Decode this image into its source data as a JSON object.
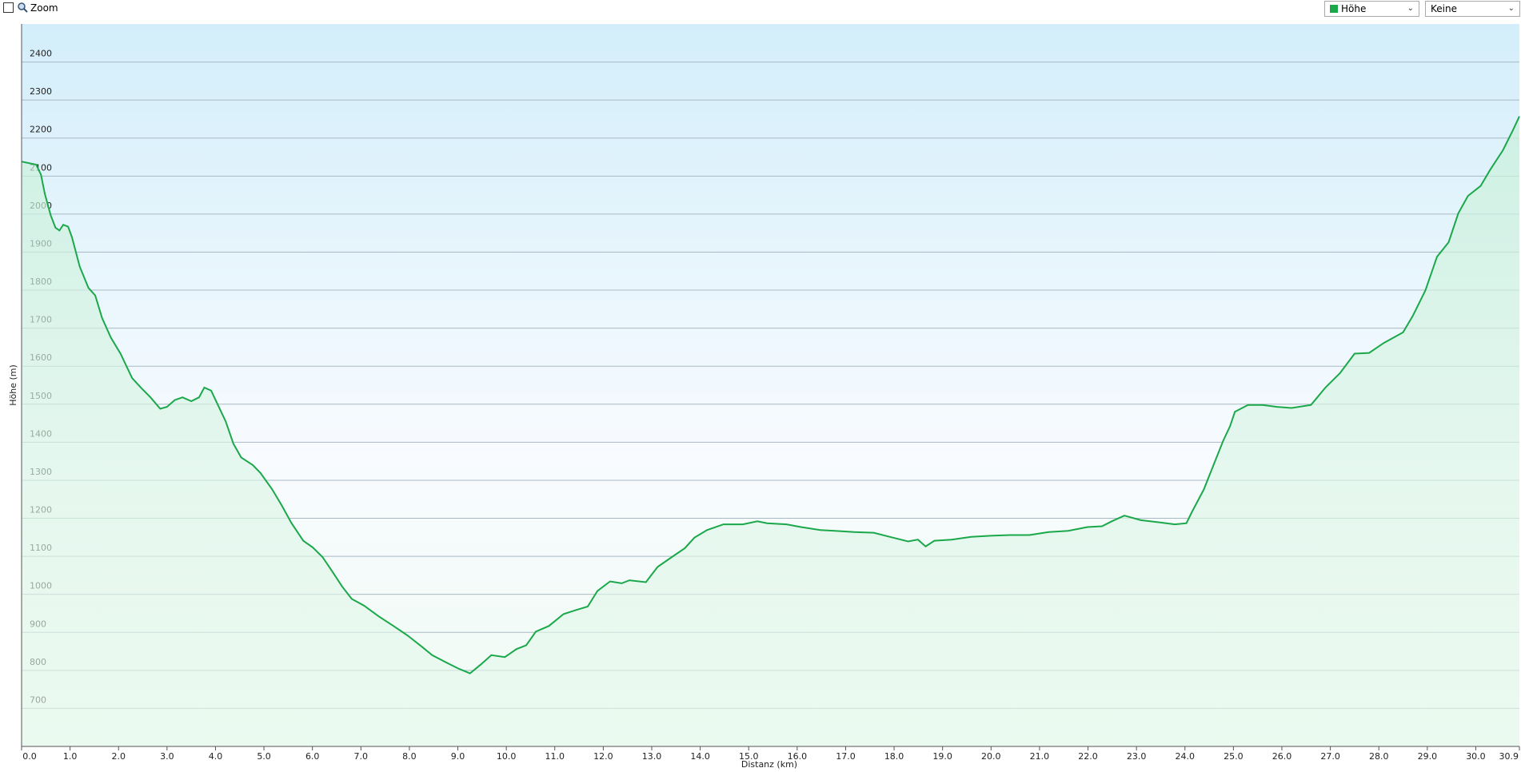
{
  "toolbar": {
    "zoom_label": "Zoom",
    "series_select": "Höhe",
    "second_select": "Keine"
  },
  "chart_data": {
    "type": "area",
    "ylabel": "Höhe (m)",
    "xlabel": "Distanz (km)",
    "series": [
      {
        "name": "Höhe",
        "color": "#1aa84a",
        "x": [
          0.0,
          0.3,
          0.4,
          0.48,
          0.6,
          0.7,
          0.78,
          0.86,
          0.96,
          1.04,
          1.2,
          1.38,
          1.52,
          1.66,
          1.84,
          2.04,
          2.28,
          2.46,
          2.66,
          2.86,
          3.0,
          3.16,
          3.32,
          3.5,
          3.66,
          3.77,
          3.91,
          4.05,
          4.21,
          4.37,
          4.53,
          4.77,
          4.93,
          5.17,
          5.37,
          5.57,
          5.81,
          6.01,
          6.21,
          6.41,
          6.61,
          6.81,
          7.07,
          7.37,
          7.67,
          7.97,
          8.27,
          8.47,
          8.77,
          9.01,
          9.25,
          9.47,
          9.69,
          9.97,
          10.21,
          10.41,
          10.61,
          10.88,
          11.18,
          11.42,
          11.68,
          11.88,
          12.14,
          12.38,
          12.54,
          12.88,
          13.12,
          13.38,
          13.68,
          13.88,
          14.14,
          14.48,
          14.88,
          15.18,
          15.38,
          15.78,
          16.08,
          16.48,
          16.78,
          17.18,
          17.58,
          17.98,
          18.29,
          18.49,
          18.65,
          18.83,
          19.19,
          19.59,
          19.99,
          20.39,
          20.79,
          21.19,
          21.59,
          21.99,
          22.29,
          22.49,
          22.75,
          23.09,
          23.49,
          23.79,
          24.03,
          24.15,
          24.39,
          24.59,
          24.79,
          24.93,
          25.03,
          25.3,
          25.6,
          25.9,
          26.2,
          26.6,
          26.9,
          27.2,
          27.5,
          27.8,
          28.1,
          28.5,
          28.7,
          28.96,
          29.2,
          29.44,
          29.64,
          29.84,
          30.1,
          30.3,
          30.56,
          30.76,
          30.9
        ],
        "values": [
          2138,
          2130,
          2104,
          2053,
          1997,
          1964,
          1957,
          1972,
          1967,
          1939,
          1862,
          1806,
          1786,
          1727,
          1676,
          1633,
          1569,
          1544,
          1518,
          1488,
          1493,
          1511,
          1518,
          1508,
          1518,
          1544,
          1536,
          1498,
          1455,
          1396,
          1360,
          1340,
          1319,
          1276,
          1233,
          1187,
          1141,
          1123,
          1098,
          1060,
          1021,
          988,
          970,
          942,
          917,
          891,
          861,
          840,
          820,
          805,
          792,
          815,
          840,
          835,
          856,
          866,
          902,
          917,
          948,
          958,
          968,
          1009,
          1034,
          1029,
          1037,
          1032,
          1072,
          1095,
          1121,
          1149,
          1169,
          1184,
          1184,
          1192,
          1187,
          1184,
          1177,
          1169,
          1167,
          1164,
          1162,
          1149,
          1139,
          1144,
          1126,
          1141,
          1144,
          1151,
          1154,
          1156,
          1156,
          1164,
          1167,
          1177,
          1179,
          1192,
          1207,
          1195,
          1189,
          1184,
          1187,
          1218,
          1276,
          1340,
          1404,
          1442,
          1480,
          1498,
          1498,
          1493,
          1490,
          1498,
          1544,
          1582,
          1633,
          1635,
          1661,
          1689,
          1732,
          1799,
          1888,
          1926,
          2002,
          2048,
          2074,
          2117,
          2168,
          2219,
          2257
        ]
      }
    ],
    "xlim": [
      0,
      30.9
    ],
    "ylim": [
      600,
      2500
    ],
    "xticks": [
      {
        "value": 0,
        "label": "0.0"
      },
      {
        "value": 1,
        "label": "1.0"
      },
      {
        "value": 2,
        "label": "2.0"
      },
      {
        "value": 3,
        "label": "3.0"
      },
      {
        "value": 4,
        "label": "4.0"
      },
      {
        "value": 5,
        "label": "5.0"
      },
      {
        "value": 6,
        "label": "6.0"
      },
      {
        "value": 7,
        "label": "7.0"
      },
      {
        "value": 8,
        "label": "8.0"
      },
      {
        "value": 9,
        "label": "9.0"
      },
      {
        "value": 10,
        "label": "10.0"
      },
      {
        "value": 11,
        "label": "11.0"
      },
      {
        "value": 12,
        "label": "12.0"
      },
      {
        "value": 13,
        "label": "13.0"
      },
      {
        "value": 14,
        "label": "14.0"
      },
      {
        "value": 15,
        "label": "15.0"
      },
      {
        "value": 16,
        "label": "16.0"
      },
      {
        "value": 17,
        "label": "17.0"
      },
      {
        "value": 18,
        "label": "18.0"
      },
      {
        "value": 19,
        "label": "19.0"
      },
      {
        "value": 20,
        "label": "20.0"
      },
      {
        "value": 21,
        "label": "21.0"
      },
      {
        "value": 22,
        "label": "22.0"
      },
      {
        "value": 23,
        "label": "23.0"
      },
      {
        "value": 24,
        "label": "24.0"
      },
      {
        "value": 25,
        "label": "25.0"
      },
      {
        "value": 26,
        "label": "26.0"
      },
      {
        "value": 27,
        "label": "27.0"
      },
      {
        "value": 28,
        "label": "28.0"
      },
      {
        "value": 29,
        "label": "29.0"
      },
      {
        "value": 30,
        "label": "30.0"
      },
      {
        "value": 30.9,
        "label": "30.9"
      }
    ],
    "yticks": [
      700,
      800,
      900,
      1000,
      1100,
      1200,
      1300,
      1400,
      1500,
      1600,
      1700,
      1800,
      1900,
      2000,
      2100,
      2200,
      2300,
      2400
    ],
    "grid": true
  }
}
